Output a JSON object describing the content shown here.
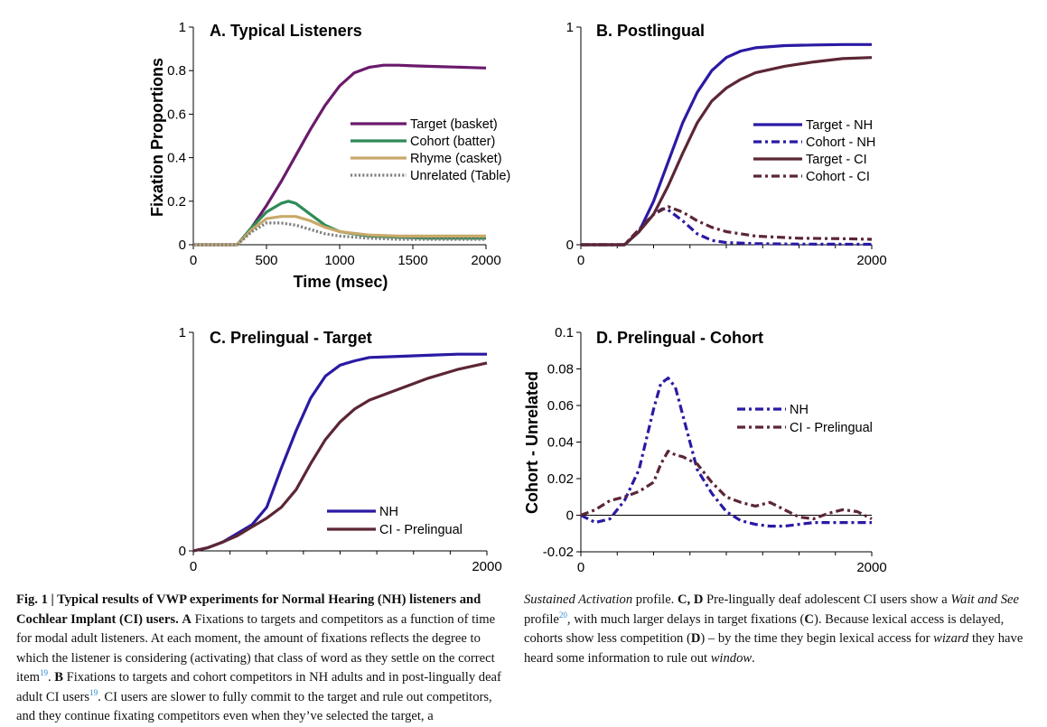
{
  "chart_data": [
    {
      "type": "line",
      "title": "A. Typical Listeners",
      "xlabel": "Time (msec)",
      "ylabel": "Fixation Proportions",
      "xlim": [
        0,
        2000
      ],
      "ylim": [
        0,
        1
      ],
      "xticks": [
        "0",
        "500",
        "1000",
        "1500",
        "2000"
      ],
      "yticks": [
        "0",
        "0.2",
        "0.4",
        "0.6",
        "0.8",
        "1"
      ],
      "legend_position": "right",
      "series": [
        {
          "name": "Target (basket)",
          "color": "#6b1a6b",
          "dash": "solid",
          "x": [
            0,
            300,
            400,
            500,
            600,
            700,
            800,
            900,
            1000,
            1100,
            1200,
            1300,
            1400,
            1500,
            1600,
            1700,
            1800,
            1900,
            2000
          ],
          "y": [
            0,
            0,
            0.08,
            0.18,
            0.29,
            0.41,
            0.53,
            0.64,
            0.73,
            0.79,
            0.815,
            0.825,
            0.825,
            0.822,
            0.82,
            0.818,
            0.816,
            0.814,
            0.812
          ]
        },
        {
          "name": "Cohort (batter)",
          "color": "#2e8b57",
          "dash": "solid",
          "x": [
            0,
            300,
            400,
            500,
            600,
            650,
            700,
            800,
            900,
            1000,
            1200,
            1400,
            1600,
            1800,
            2000
          ],
          "y": [
            0,
            0,
            0.08,
            0.15,
            0.19,
            0.2,
            0.19,
            0.14,
            0.09,
            0.06,
            0.04,
            0.035,
            0.03,
            0.03,
            0.03
          ]
        },
        {
          "name": "Rhyme (casket)",
          "color": "#c9a96a",
          "dash": "solid",
          "x": [
            0,
            300,
            400,
            500,
            600,
            700,
            800,
            900,
            1000,
            1200,
            1400,
            1600,
            1800,
            2000
          ],
          "y": [
            0,
            0,
            0.07,
            0.12,
            0.13,
            0.13,
            0.11,
            0.08,
            0.06,
            0.045,
            0.04,
            0.04,
            0.04,
            0.04
          ]
        },
        {
          "name": "Unrelated (Table)",
          "color": "#808080",
          "dash": "dotted",
          "x": [
            0,
            300,
            400,
            500,
            600,
            700,
            800,
            900,
            1000,
            1200,
            1400,
            1600,
            1800,
            2000
          ],
          "y": [
            0,
            0,
            0.06,
            0.1,
            0.1,
            0.09,
            0.07,
            0.05,
            0.04,
            0.03,
            0.025,
            0.025,
            0.025,
            0.025
          ]
        }
      ]
    },
    {
      "type": "line",
      "title": "B. Postlingual",
      "xlabel": "",
      "ylabel": "",
      "xlim": [
        0,
        2000
      ],
      "ylim": [
        0,
        1
      ],
      "xticks": [
        "0",
        "2000"
      ],
      "yticks": [
        "0",
        "1"
      ],
      "legend_position": "right",
      "series": [
        {
          "name": "Target - NH",
          "color": "#2a1aa3",
          "dash": "solid",
          "x": [
            0,
            300,
            400,
            500,
            600,
            700,
            800,
            900,
            1000,
            1100,
            1200,
            1400,
            1600,
            1800,
            2000
          ],
          "y": [
            0,
            0,
            0.06,
            0.2,
            0.38,
            0.56,
            0.7,
            0.8,
            0.86,
            0.89,
            0.905,
            0.915,
            0.918,
            0.92,
            0.92
          ]
        },
        {
          "name": "Cohort - NH",
          "color": "#2a1aa3",
          "dash": "dashdot",
          "x": [
            0,
            300,
            400,
            500,
            560,
            600,
            700,
            800,
            900,
            1000,
            1200,
            1500,
            2000
          ],
          "y": [
            0,
            0,
            0.07,
            0.14,
            0.165,
            0.16,
            0.11,
            0.05,
            0.02,
            0.01,
            0.005,
            0.003,
            0.002
          ]
        },
        {
          "name": "Target - CI",
          "color": "#5c2634",
          "dash": "solid",
          "x": [
            0,
            300,
            400,
            500,
            600,
            700,
            800,
            900,
            1000,
            1100,
            1200,
            1400,
            1600,
            1800,
            2000
          ],
          "y": [
            0,
            0,
            0.06,
            0.14,
            0.27,
            0.42,
            0.56,
            0.66,
            0.72,
            0.76,
            0.79,
            0.82,
            0.84,
            0.855,
            0.86
          ]
        },
        {
          "name": "Cohort - CI",
          "color": "#5c2634",
          "dash": "dashdot",
          "x": [
            0,
            300,
            400,
            500,
            600,
            700,
            800,
            900,
            1000,
            1200,
            1500,
            1800,
            2000
          ],
          "y": [
            0,
            0,
            0.07,
            0.14,
            0.175,
            0.15,
            0.11,
            0.08,
            0.06,
            0.04,
            0.03,
            0.028,
            0.025
          ]
        }
      ]
    },
    {
      "type": "line",
      "title": "C. Prelingual - Target",
      "xlabel": "",
      "ylabel": "",
      "xlim": [
        0,
        2000
      ],
      "ylim": [
        0,
        1
      ],
      "xticks": [
        "0",
        "2000"
      ],
      "yticks": [
        "0",
        "1"
      ],
      "legend_position": "bottom-right",
      "series": [
        {
          "name": "NH",
          "color": "#2a1aa3",
          "dash": "solid",
          "x": [
            0,
            100,
            200,
            300,
            400,
            500,
            600,
            700,
            800,
            900,
            1000,
            1100,
            1200,
            1400,
            1600,
            1800,
            2000
          ],
          "y": [
            0,
            0.015,
            0.04,
            0.08,
            0.12,
            0.2,
            0.38,
            0.55,
            0.7,
            0.8,
            0.85,
            0.87,
            0.885,
            0.89,
            0.895,
            0.9,
            0.9
          ]
        },
        {
          "name": "CI - Prelingual",
          "color": "#5c2634",
          "dash": "solid",
          "x": [
            0,
            100,
            200,
            300,
            400,
            500,
            600,
            700,
            800,
            900,
            1000,
            1100,
            1200,
            1400,
            1600,
            1800,
            2000
          ],
          "y": [
            0,
            0.015,
            0.04,
            0.07,
            0.11,
            0.15,
            0.2,
            0.28,
            0.4,
            0.51,
            0.59,
            0.65,
            0.69,
            0.74,
            0.79,
            0.83,
            0.86
          ]
        }
      ]
    },
    {
      "type": "line",
      "title": "D. Prelingual - Cohort",
      "xlabel": "",
      "ylabel": "Cohort - Unrelated",
      "xlim": [
        0,
        2000
      ],
      "ylim": [
        -0.02,
        0.1
      ],
      "xticks": [
        "0",
        "2000"
      ],
      "yticks": [
        "-0.02",
        "0",
        "0.02",
        "0.04",
        "0.06",
        "0.08",
        "0.1"
      ],
      "legend_position": "top-right",
      "series": [
        {
          "name": "NH",
          "color": "#2a1aa3",
          "dash": "dashdot",
          "x": [
            0,
            100,
            200,
            300,
            400,
            500,
            550,
            600,
            650,
            700,
            800,
            900,
            1000,
            1100,
            1200,
            1300,
            1400,
            1500,
            1600,
            1700,
            1800,
            1900,
            2000
          ],
          "y": [
            0,
            -0.004,
            -0.002,
            0.008,
            0.025,
            0.058,
            0.072,
            0.075,
            0.07,
            0.055,
            0.025,
            0.012,
            0.002,
            -0.003,
            -0.005,
            -0.006,
            -0.006,
            -0.005,
            -0.004,
            -0.004,
            -0.004,
            -0.004,
            -0.004
          ]
        },
        {
          "name": "CI - Prelingual",
          "color": "#5c2634",
          "dash": "dashdot",
          "x": [
            0,
            100,
            200,
            300,
            400,
            500,
            550,
            600,
            650,
            700,
            800,
            900,
            1000,
            1100,
            1200,
            1300,
            1400,
            1500,
            1600,
            1700,
            1800,
            1900,
            2000
          ],
          "y": [
            0,
            0.003,
            0.008,
            0.01,
            0.013,
            0.018,
            0.028,
            0.035,
            0.033,
            0.032,
            0.028,
            0.018,
            0.01,
            0.007,
            0.005,
            0.007,
            0.003,
            -0.001,
            -0.002,
            0.001,
            0.003,
            0.002,
            -0.002
          ]
        }
      ]
    }
  ],
  "caption": {
    "fig_label": "Fig. 1 | ",
    "fig_title": "Typical results of VWP experiments for Normal Hearing (NH) listeners and Cochlear Implant (CI) users.",
    "a_label": "A",
    "a_text_1": " Fixations to targets and competitors as a function of time for modal adult listeners. At each moment, the amount of fixations reflects the degree to which the listener is considering (activating) that class of word as they settle on the correct item",
    "ref_19a": "19",
    "a_text_2": ". ",
    "b_label": "B",
    "b_text_1": " Fixations to targets and cohort competitors in NH adults and in post-lingually deaf adult CI users",
    "ref_19b": "19",
    "b_text_2": ". CI users are slower to fully commit to the target and rule out competitors, and they continue fixating competitors even when they’ve selected the target, a ",
    "sustained": "Sustained Activation",
    "b_text_3": " profile.",
    "cd_label": "C, D",
    "cd_text_1": " Pre-lingually deaf adolescent CI users show a ",
    "wait_see": "Wait and See",
    "cd_text_2": " profile",
    "ref_20": "20",
    "cd_text_3": ", with much larger delays in target fixations (",
    "c_label": "C",
    "cd_text_4": "). Because lexical access is delayed, cohorts show less competition (",
    "d_label": "D",
    "cd_text_5": ") – by the time they begin lexical access for ",
    "wizard": "wizard",
    "cd_text_6": " they have heard some information to rule out ",
    "window": "window",
    "cd_text_7": "."
  }
}
